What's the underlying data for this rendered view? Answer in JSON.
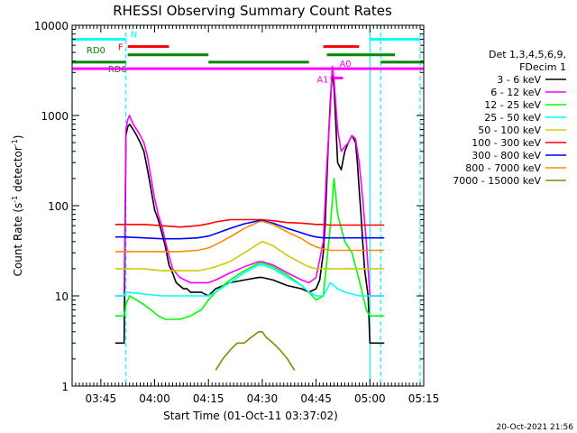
{
  "chart_data": {
    "type": "line",
    "title": "RHESSI Observing Summary Count Rates",
    "xlabel": "Start Time (01-Oct-11 03:37:02)",
    "ylabel": "Count Rate (s⁻¹ detector⁻¹)",
    "ylabel_parts": {
      "main": "Count Rate (s",
      "exp1": "-1",
      "mid": " detector",
      "exp2": "-1",
      "end": ")"
    },
    "yscale": "log",
    "ylim": [
      1,
      10000
    ],
    "xlim_min": [
      0,
      98
    ],
    "xticks": [
      {
        "t": 8,
        "label": "03:45"
      },
      {
        "t": 23,
        "label": "04:00"
      },
      {
        "t": 38,
        "label": "04:15"
      },
      {
        "t": 53,
        "label": "04:30"
      },
      {
        "t": 68,
        "label": "04:45"
      },
      {
        "t": 83,
        "label": "05:00"
      },
      {
        "t": 98,
        "label": "05:15"
      }
    ],
    "yticks": [
      {
        "v": 1,
        "label": "1"
      },
      {
        "v": 10,
        "label": "10"
      },
      {
        "v": 100,
        "label": "100"
      },
      {
        "v": 1000,
        "label": "1000"
      },
      {
        "v": 10000,
        "label": "10000"
      }
    ],
    "legend": {
      "placement": "right",
      "header": [
        "Det 1,3,4,5,6,9,",
        "FDecim 1"
      ],
      "entries": [
        {
          "label": "3 - 6 keV",
          "color": "#000000"
        },
        {
          "label": "6 - 12 keV",
          "color": "#ff00ff"
        },
        {
          "label": "12 - 25 keV",
          "color": "#00ff00"
        },
        {
          "label": "25 - 50 keV",
          "color": "#00ffff"
        },
        {
          "label": "50 - 100 keV",
          "color": "#cccc00"
        },
        {
          "label": "100 - 300 keV",
          "color": "#ff0000"
        },
        {
          "label": "300 - 800 keV",
          "color": "#0000ff"
        },
        {
          "label": "800 - 7000 keV",
          "color": "#ff8800"
        },
        {
          "label": "7000 - 15000 keV",
          "color": "#888800"
        }
      ]
    },
    "series": [
      {
        "name": "3 - 6 keV",
        "color": "#000000",
        "x": [
          12,
          14.5,
          15,
          15.5,
          16,
          17,
          18,
          19,
          20,
          21,
          22,
          23,
          24,
          25,
          26,
          27,
          28,
          29,
          30,
          31,
          32,
          33,
          34,
          35,
          36,
          37,
          38,
          40,
          44,
          48,
          52,
          53,
          56,
          60,
          64,
          66,
          68,
          69,
          70,
          70.5,
          71,
          71.5,
          72,
          72.5,
          73,
          73.5,
          74,
          75,
          76,
          77,
          78,
          79,
          79.5,
          80,
          80.5,
          81,
          81.5,
          82.5,
          83,
          85,
          87
        ],
        "y": [
          3,
          3,
          600,
          750,
          800,
          700,
          600,
          500,
          400,
          250,
          150,
          90,
          70,
          50,
          35,
          22,
          18,
          14,
          13,
          12,
          12,
          11,
          11,
          11,
          11,
          10.5,
          10,
          12,
          14,
          15,
          16,
          16,
          15,
          13,
          12,
          11,
          12,
          15,
          30,
          60,
          200,
          600,
          1500,
          3000,
          2000,
          800,
          300,
          250,
          400,
          500,
          600,
          500,
          300,
          150,
          80,
          40,
          20,
          10,
          3,
          3,
          3
        ]
      },
      {
        "name": "6 - 12 keV",
        "color": "#ff00ff",
        "x": [
          12,
          14.5,
          15,
          15.5,
          16,
          17,
          18,
          19,
          20,
          21,
          22,
          23,
          24,
          25,
          26,
          27,
          28,
          30,
          33,
          35,
          38,
          40,
          44,
          48,
          52,
          53,
          56,
          60,
          64,
          66,
          68,
          70,
          71,
          72,
          72.5,
          73,
          74,
          75,
          76,
          77,
          78,
          79,
          80,
          81,
          82,
          83,
          87
        ],
        "y": [
          10,
          10,
          700,
          900,
          1000,
          800,
          700,
          600,
          500,
          350,
          200,
          120,
          80,
          60,
          40,
          28,
          20,
          16,
          14,
          14,
          14,
          15,
          18,
          21,
          24,
          24,
          22,
          18,
          15,
          14,
          16,
          40,
          300,
          1200,
          3500,
          2500,
          700,
          400,
          450,
          500,
          600,
          550,
          300,
          120,
          40,
          10,
          10
        ]
      },
      {
        "name": "12 - 25 keV",
        "color": "#00ff00",
        "x": [
          12,
          14.5,
          15,
          16,
          18,
          20,
          22,
          24,
          26,
          28,
          30,
          33,
          36,
          38,
          40,
          44,
          48,
          52,
          53,
          56,
          60,
          64,
          66,
          68,
          70,
          72,
          73,
          74,
          76,
          78,
          80,
          82,
          83,
          87
        ],
        "y": [
          6,
          6,
          8,
          10,
          9,
          8,
          7,
          6,
          5.5,
          5.5,
          5.5,
          6,
          7,
          9,
          11,
          15,
          19,
          23,
          23,
          21,
          17,
          13,
          11,
          9,
          10,
          60,
          200,
          80,
          40,
          30,
          15,
          7,
          6,
          6
        ]
      },
      {
        "name": "25 - 50 keV",
        "color": "#00ffff",
        "x": [
          12,
          14.5,
          15,
          20,
          25,
          30,
          35,
          38,
          40,
          44,
          48,
          52,
          53,
          56,
          60,
          64,
          66,
          68,
          70,
          72,
          74,
          76,
          78,
          80,
          83,
          87
        ],
        "y": [
          10,
          10,
          11,
          10.5,
          10,
          10,
          10,
          10,
          11,
          14,
          18,
          22,
          22,
          20,
          16,
          13,
          11,
          10,
          10,
          14,
          12,
          11,
          10.5,
          10,
          10,
          10
        ]
      },
      {
        "name": "50 - 100 keV",
        "color": "#cccc00",
        "x": [
          12,
          14.5,
          20,
          25,
          30,
          35,
          38,
          40,
          44,
          48,
          52,
          53,
          56,
          60,
          64,
          66,
          68,
          70,
          72,
          76,
          80,
          83,
          87
        ],
        "y": [
          20,
          20,
          20,
          19,
          19,
          19,
          20,
          21,
          24,
          30,
          38,
          40,
          36,
          28,
          23,
          21,
          20,
          20,
          20,
          20,
          20,
          20,
          20
        ]
      },
      {
        "name": "100 - 300 keV",
        "color": "#ff0000",
        "x": [
          12,
          14.5,
          20,
          25,
          30,
          35,
          38,
          40,
          44,
          48,
          52,
          53,
          56,
          60,
          64,
          66,
          68,
          70,
          72,
          76,
          80,
          83,
          87
        ],
        "y": [
          62,
          62,
          62,
          60,
          58,
          60,
          63,
          66,
          70,
          70,
          70,
          70,
          68,
          65,
          64,
          63,
          62,
          62,
          61,
          61,
          61,
          61,
          61
        ]
      },
      {
        "name": "300 - 800 keV",
        "color": "#0000ff",
        "x": [
          12,
          14.5,
          20,
          25,
          30,
          35,
          38,
          40,
          44,
          48,
          52,
          53,
          56,
          60,
          64,
          66,
          68,
          70,
          72,
          76,
          80,
          83,
          87
        ],
        "y": [
          45,
          45,
          44,
          43,
          43,
          44,
          46,
          49,
          56,
          63,
          68,
          68,
          64,
          56,
          50,
          47,
          45,
          44,
          44,
          44,
          44,
          44,
          44
        ]
      },
      {
        "name": "800 - 7000 keV",
        "color": "#ff8800",
        "x": [
          12,
          14.5,
          20,
          25,
          30,
          35,
          38,
          40,
          44,
          48,
          52,
          53,
          56,
          60,
          64,
          66,
          68,
          70,
          72,
          76,
          80,
          83,
          87
        ],
        "y": [
          31,
          31,
          31,
          31,
          31,
          32,
          34,
          37,
          45,
          56,
          66,
          67,
          62,
          51,
          43,
          38,
          35,
          33,
          32,
          32,
          32,
          32,
          32
        ]
      },
      {
        "name": "7000 - 15000 keV",
        "color": "#888800",
        "x": [
          40,
          42,
          44,
          46,
          48,
          50,
          52,
          53,
          54,
          56,
          58,
          60,
          62
        ],
        "y": [
          1.5,
          2,
          2.5,
          3,
          3,
          3.5,
          4,
          4,
          3.5,
          3,
          2.5,
          2,
          1.5
        ]
      }
    ],
    "state_bars": [
      {
        "label": "N",
        "color": "#00ffff",
        "y_level": 7000,
        "segments": [
          [
            0,
            15
          ],
          [
            83,
            97
          ]
        ]
      },
      {
        "label": "F",
        "color": "#ff0000",
        "y_level": 5800,
        "segments": [
          [
            15.5,
            27
          ],
          [
            70,
            80
          ]
        ]
      },
      {
        "label": "RD0",
        "color": "#008800",
        "y_level": 4700,
        "segments": [
          [
            15.5,
            38
          ],
          [
            71,
            90
          ]
        ]
      },
      {
        "label": "RD6",
        "color": "#008800",
        "y_level": 3900,
        "segments": [
          [
            0,
            15
          ],
          [
            38,
            66
          ],
          [
            86,
            98
          ]
        ]
      },
      {
        "label": "A1",
        "color": "#ff00ff",
        "y_level": 2600,
        "segments": [
          [
            72,
            75.5
          ]
        ]
      },
      {
        "label": "A0",
        "color": "#ff00ff",
        "y_level": 3300,
        "segments": [
          [
            0,
            98
          ]
        ]
      }
    ],
    "vlines": [
      {
        "t": 0,
        "color": "#00ffff",
        "style": "solid"
      },
      {
        "t": 15,
        "color": "#00ffff",
        "style": "dashed"
      },
      {
        "t": 83,
        "color": "#00ffff",
        "style": "solid"
      },
      {
        "t": 86,
        "color": "#00ffff",
        "style": "dashed"
      },
      {
        "t": 97,
        "color": "#00ffff",
        "style": "dashed"
      }
    ],
    "timestamp": "20-Oct-2021 21:56"
  }
}
